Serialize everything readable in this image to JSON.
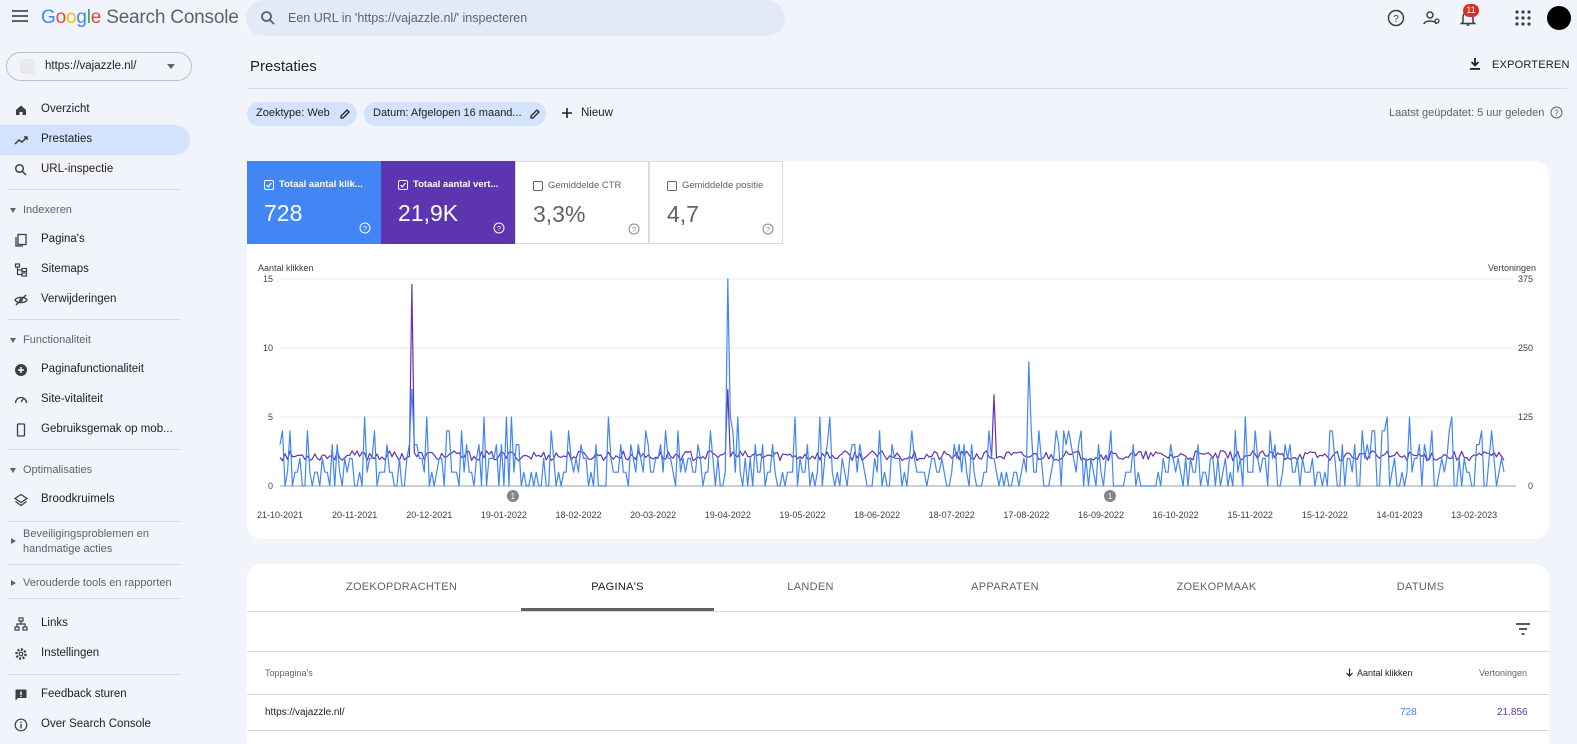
{
  "app": {
    "title_google": "Google",
    "title_product": "Search Console"
  },
  "search": {
    "placeholder": "Een URL in 'https://vajazzle.nl/' inspecteren"
  },
  "header": {
    "notifications_count": "11"
  },
  "property": {
    "name": "https://vajazzle.nl/"
  },
  "sidebar": {
    "top_items": [
      {
        "label": "Overzicht",
        "icon": "home-icon"
      },
      {
        "label": "Prestaties",
        "icon": "trending-up-icon",
        "active": true
      },
      {
        "label": "URL-inspectie",
        "icon": "search-icon"
      }
    ],
    "sections": [
      {
        "label": "Indexeren",
        "items": [
          "Pagina's",
          "Sitemaps",
          "Verwijderingen"
        ]
      },
      {
        "label": "Functionaliteit",
        "items": [
          "Paginafunctionaliteit",
          "Site-vitaliteit",
          "Gebruiksgemak op mob..."
        ]
      },
      {
        "label": "Optimalisaties",
        "items": [
          "Broodkruimels"
        ]
      }
    ],
    "collapsed_sections": [
      "Beveiligingsproblemen en handmatige acties",
      "Verouderde tools en rapporten"
    ],
    "bottom_items": [
      "Links",
      "Instellingen"
    ],
    "footer_items": [
      "Feedback sturen",
      "Over Search Console"
    ]
  },
  "main": {
    "title": "Prestaties",
    "export_label": "EXPORTEREN",
    "filters": [
      {
        "label": "Zoektype: Web"
      },
      {
        "label": "Datum: Afgelopen 16 maand..."
      }
    ],
    "new_label": "Nieuw",
    "last_updated": "Laatst geüpdatet: 5 uur geleden"
  },
  "metrics": [
    {
      "label": "Totaal aantal klik...",
      "value": "728",
      "checked": true,
      "color": "#4285f4"
    },
    {
      "label": "Totaal aantal vert...",
      "value": "21,9K",
      "checked": true,
      "color": "#5e35b1"
    },
    {
      "label": "Gemiddelde CTR",
      "value": "3,3%",
      "checked": false
    },
    {
      "label": "Gemiddelde positie",
      "value": "4,7",
      "checked": false
    }
  ],
  "chart_data": {
    "type": "line",
    "left_axis_title": "Aantal klikken",
    "right_axis_title": "Vertoningen",
    "y_left_ticks": [
      0,
      5,
      10,
      15
    ],
    "y_right_ticks": [
      0,
      125,
      250,
      375
    ],
    "ylim_left": [
      0,
      15
    ],
    "ylim_right": [
      0,
      375
    ],
    "x_tick_labels": [
      "21-10-2021",
      "20-11-2021",
      "20-12-2021",
      "19-01-2022",
      "18-02-2022",
      "20-03-2022",
      "19-04-2022",
      "19-05-2022",
      "18-06-2022",
      "18-07-2022",
      "17-08-2022",
      "16-09-2022",
      "16-10-2022",
      "15-11-2022",
      "15-12-2022",
      "14-01-2023",
      "13-02-2023"
    ],
    "annotations": [
      {
        "label": "1",
        "date": "19-01-2022"
      },
      {
        "label": "1",
        "date": "16-09-2022"
      }
    ],
    "grid": true,
    "series": [
      {
        "name": "Aantal klikken",
        "axis": "left",
        "color": "#4285f4",
        "peaks": [
          {
            "date": "13-12-2021",
            "value": 7
          },
          {
            "date": "19-04-2022",
            "value": 15
          },
          {
            "date": "18-08-2022",
            "value": 9
          },
          {
            "date": "04-02-2023",
            "value": 5
          }
        ],
        "baseline_range": [
          0,
          5
        ]
      },
      {
        "name": "Vertoningen",
        "axis": "right",
        "color": "#5e35b1",
        "peaks": [
          {
            "date": "13-12-2021",
            "value": 365
          },
          {
            "date": "19-04-2022",
            "value": 175
          },
          {
            "date": "04-08-2022",
            "value": 165
          }
        ],
        "baseline_range": [
          30,
          75
        ]
      }
    ]
  },
  "table": {
    "tabs": [
      "ZOEKOPDRACHTEN",
      "PAGINA'S",
      "LANDEN",
      "APPARATEN",
      "ZOEKOPMAAK",
      "DATUMS"
    ],
    "active_tab": 1,
    "columns": [
      "Toppagina's",
      "Aantal klikken",
      "Vertoningen"
    ],
    "rows": [
      {
        "page": "https://vajazzle.nl/",
        "clicks": "728",
        "impressions": "21.856"
      }
    ]
  }
}
